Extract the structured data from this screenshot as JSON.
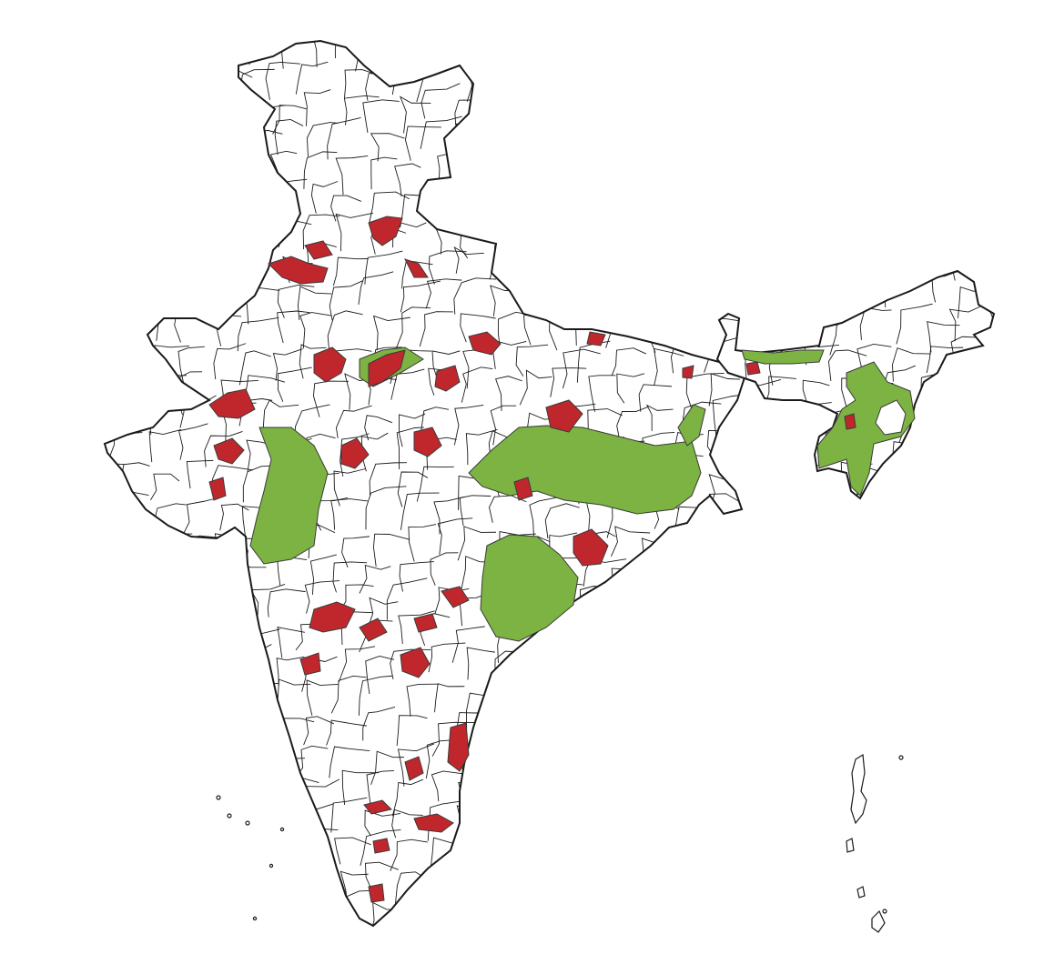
{
  "map": {
    "colors": {
      "background": "#ffffff",
      "outline": "#1a1a1a",
      "district_fill": "#ffffff",
      "category_red": "#c0272d",
      "category_green": "#7cb342"
    },
    "legend": [],
    "title": ""
  }
}
